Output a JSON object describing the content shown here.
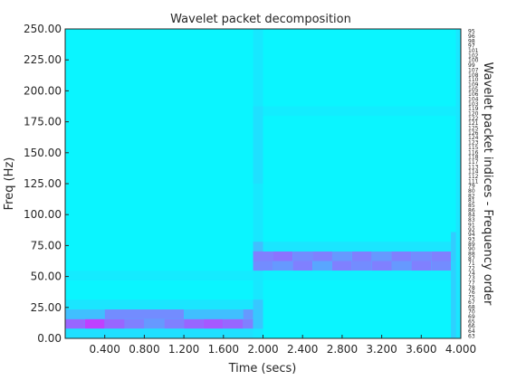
{
  "chart_data": {
    "type": "heatmap",
    "title": "Wavelet packet decomposition",
    "xlabel": "Time (secs)",
    "ylabel": "Freq (Hz)",
    "right_label": "Wavelet packet indices - Frequency order",
    "xlim": [
      0,
      4.0
    ],
    "ylim": [
      0,
      250
    ],
    "x_ticks": [
      {
        "value": 0.4,
        "label": "0.400"
      },
      {
        "value": 0.8,
        "label": "0.800"
      },
      {
        "value": 1.2,
        "label": "1.200"
      },
      {
        "value": 1.6,
        "label": "1.600"
      },
      {
        "value": 2.0,
        "label": "2.000"
      },
      {
        "value": 2.4,
        "label": "2.400"
      },
      {
        "value": 2.8,
        "label": "2.800"
      },
      {
        "value": 3.2,
        "label": "3.200"
      },
      {
        "value": 3.6,
        "label": "3.600"
      },
      {
        "value": 4.0,
        "label": "4.000"
      }
    ],
    "y_ticks": [
      {
        "value": 0,
        "label": "0.00"
      },
      {
        "value": 25,
        "label": "25.00"
      },
      {
        "value": 50,
        "label": "50.00"
      },
      {
        "value": 75,
        "label": "75.00"
      },
      {
        "value": 100,
        "label": "100.00"
      },
      {
        "value": 125,
        "label": "125.00"
      },
      {
        "value": 150,
        "label": "150.00"
      },
      {
        "value": 175,
        "label": "175.00"
      },
      {
        "value": 200,
        "label": "200.00"
      },
      {
        "value": 225,
        "label": "225.00"
      },
      {
        "value": 250,
        "label": "250.00"
      }
    ],
    "band_hz": 7.8125,
    "node_indices_top_to_bottom": [
      95,
      96,
      98,
      97,
      101,
      102,
      100,
      99,
      107,
      108,
      110,
      109,
      105,
      106,
      104,
      103,
      119,
      120,
      122,
      121,
      125,
      126,
      124,
      123,
      115,
      116,
      118,
      117,
      113,
      114,
      112,
      111,
      79,
      80,
      82,
      81,
      85,
      86,
      84,
      83,
      91,
      92,
      94,
      93,
      89,
      90,
      88,
      87,
      71,
      72,
      74,
      73,
      77,
      78,
      76,
      75,
      67,
      68,
      70,
      69,
      65,
      66,
      64,
      63
    ],
    "colormap": {
      "low": "#00ffff",
      "high": "#ff00ff"
    },
    "background_level": 0.04,
    "highlights": [
      {
        "x": [
          0.0,
          0.2
        ],
        "y": [
          7.8,
          15.6
        ],
        "level": 0.6
      },
      {
        "x": [
          0.2,
          0.4
        ],
        "y": [
          7.8,
          15.6
        ],
        "level": 0.75
      },
      {
        "x": [
          0.4,
          0.6
        ],
        "y": [
          7.8,
          15.6
        ],
        "level": 0.6
      },
      {
        "x": [
          0.6,
          0.8
        ],
        "y": [
          7.8,
          15.6
        ],
        "level": 0.5
      },
      {
        "x": [
          0.8,
          1.0
        ],
        "y": [
          7.8,
          15.6
        ],
        "level": 0.4
      },
      {
        "x": [
          1.0,
          1.2
        ],
        "y": [
          7.8,
          15.6
        ],
        "level": 0.5
      },
      {
        "x": [
          1.2,
          1.4
        ],
        "y": [
          7.8,
          15.6
        ],
        "level": 0.6
      },
      {
        "x": [
          1.4,
          1.6
        ],
        "y": [
          7.8,
          15.6
        ],
        "level": 0.65
      },
      {
        "x": [
          1.6,
          1.8
        ],
        "y": [
          7.8,
          15.6
        ],
        "level": 0.6
      },
      {
        "x": [
          1.8,
          1.9
        ],
        "y": [
          7.8,
          15.6
        ],
        "level": 0.5
      },
      {
        "x": [
          0.0,
          0.4
        ],
        "y": [
          15.6,
          23.4
        ],
        "level": 0.25
      },
      {
        "x": [
          0.4,
          1.2
        ],
        "y": [
          15.6,
          23.4
        ],
        "level": 0.45
      },
      {
        "x": [
          1.2,
          1.8
        ],
        "y": [
          15.6,
          23.4
        ],
        "level": 0.25
      },
      {
        "x": [
          1.8,
          1.9
        ],
        "y": [
          15.6,
          23.4
        ],
        "level": 0.4
      },
      {
        "x": [
          0.0,
          1.9
        ],
        "y": [
          0,
          7.8
        ],
        "level": 0.12
      },
      {
        "x": [
          0.0,
          1.9
        ],
        "y": [
          23.4,
          31.3
        ],
        "level": 0.1
      },
      {
        "x": [
          0.0,
          1.9
        ],
        "y": [
          46.9,
          54.7
        ],
        "level": 0.08
      },
      {
        "x": [
          1.9,
          2.0
        ],
        "y": [
          0,
          250
        ],
        "level": 0.09
      },
      {
        "x": [
          1.9,
          2.0
        ],
        "y": [
          7.8,
          31.3
        ],
        "level": 0.22
      },
      {
        "x": [
          1.9,
          2.0
        ],
        "y": [
          62.5,
          78.1
        ],
        "level": 0.25
      },
      {
        "x": [
          1.9,
          2.1
        ],
        "y": [
          54.7,
          62.5
        ],
        "level": 0.45
      },
      {
        "x": [
          1.9,
          2.1
        ],
        "y": [
          62.5,
          70.3
        ],
        "level": 0.5
      },
      {
        "x": [
          2.1,
          2.3
        ],
        "y": [
          54.7,
          62.5
        ],
        "level": 0.4
      },
      {
        "x": [
          2.1,
          2.3
        ],
        "y": [
          62.5,
          70.3
        ],
        "level": 0.55
      },
      {
        "x": [
          2.3,
          2.5
        ],
        "y": [
          54.7,
          62.5
        ],
        "level": 0.5
      },
      {
        "x": [
          2.3,
          2.5
        ],
        "y": [
          62.5,
          70.3
        ],
        "level": 0.45
      },
      {
        "x": [
          2.5,
          2.7
        ],
        "y": [
          54.7,
          62.5
        ],
        "level": 0.35
      },
      {
        "x": [
          2.5,
          2.7
        ],
        "y": [
          62.5,
          70.3
        ],
        "level": 0.5
      },
      {
        "x": [
          2.7,
          2.9
        ],
        "y": [
          54.7,
          62.5
        ],
        "level": 0.5
      },
      {
        "x": [
          2.7,
          2.9
        ],
        "y": [
          62.5,
          70.3
        ],
        "level": 0.4
      },
      {
        "x": [
          2.9,
          3.1
        ],
        "y": [
          54.7,
          62.5
        ],
        "level": 0.45
      },
      {
        "x": [
          2.9,
          3.1
        ],
        "y": [
          62.5,
          70.3
        ],
        "level": 0.5
      },
      {
        "x": [
          3.1,
          3.3
        ],
        "y": [
          54.7,
          62.5
        ],
        "level": 0.5
      },
      {
        "x": [
          3.1,
          3.3
        ],
        "y": [
          62.5,
          70.3
        ],
        "level": 0.4
      },
      {
        "x": [
          3.3,
          3.5
        ],
        "y": [
          54.7,
          62.5
        ],
        "level": 0.4
      },
      {
        "x": [
          3.3,
          3.5
        ],
        "y": [
          62.5,
          70.3
        ],
        "level": 0.5
      },
      {
        "x": [
          3.5,
          3.7
        ],
        "y": [
          54.7,
          62.5
        ],
        "level": 0.5
      },
      {
        "x": [
          3.5,
          3.7
        ],
        "y": [
          62.5,
          70.3
        ],
        "level": 0.45
      },
      {
        "x": [
          3.7,
          3.9
        ],
        "y": [
          54.7,
          62.5
        ],
        "level": 0.45
      },
      {
        "x": [
          3.7,
          3.9
        ],
        "y": [
          62.5,
          70.3
        ],
        "level": 0.5
      },
      {
        "x": [
          3.9,
          4.0
        ],
        "y": [
          54.7,
          70.3
        ],
        "level": 0.3
      },
      {
        "x": [
          2.0,
          3.9
        ],
        "y": [
          70.3,
          78.1
        ],
        "level": 0.1
      },
      {
        "x": [
          2.0,
          3.9
        ],
        "y": [
          46.9,
          54.7
        ],
        "level": 0.06
      },
      {
        "x": [
          2.0,
          4.0
        ],
        "y": [
          179.7,
          187.5
        ],
        "level": 0.07
      },
      {
        "x": [
          1.9,
          2.0
        ],
        "y": [
          125,
          187.5
        ],
        "level": 0.12
      },
      {
        "x": [
          3.9,
          4.0
        ],
        "y": [
          0,
          62.5
        ],
        "level": 0.18
      },
      {
        "x": [
          3.9,
          4.0
        ],
        "y": [
          62.5,
          85.9
        ],
        "level": 0.2
      },
      {
        "x": [
          3.95,
          4.0
        ],
        "y": [
          0,
          250
        ],
        "level": 0.1
      }
    ]
  }
}
